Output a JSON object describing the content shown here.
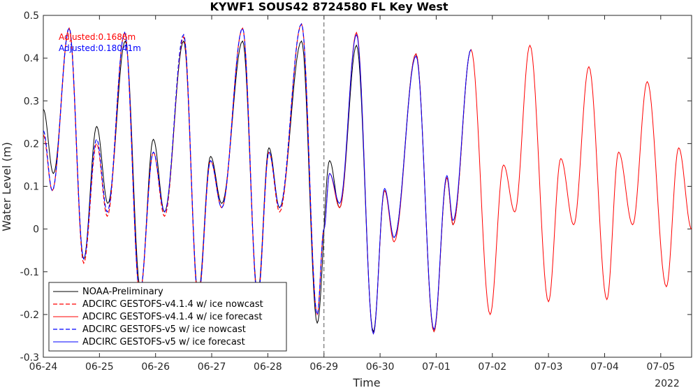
{
  "chart_data": {
    "type": "line",
    "title": "KYWF1 SOUS42 8724580 FL Key West",
    "xlabel": "Time",
    "ylabel": "Water Level (m)",
    "xlim_days": [
      0,
      11.55
    ],
    "ylim": [
      -0.3,
      0.5
    ],
    "x_ticks": [
      "06-24",
      "06-25",
      "06-26",
      "06-27",
      "06-28",
      "06-29",
      "06-30",
      "07-01",
      "07-02",
      "07-03",
      "07-04",
      "07-05"
    ],
    "y_ticks": [
      "-0.3",
      "-0.2",
      "-0.1",
      "0",
      "0.1",
      "0.2",
      "0.3",
      "0.4",
      "0.5"
    ],
    "year_label": "2022",
    "nowcast_forecast_boundary": "06-29",
    "annotations": [
      {
        "text": "Adjusted:0.1686m",
        "color": "#ff0000"
      },
      {
        "text": "Adjusted:0.18041m",
        "color": "#0000ff"
      }
    ],
    "legend_position": "bottom-left",
    "series": [
      {
        "name": "NOAA-Preliminary",
        "color": "#000000",
        "style": "solid",
        "width": 1,
        "peaks": [
          [
            0.0,
            0.28
          ],
          [
            0.18,
            0.13
          ],
          [
            0.46,
            0.47
          ],
          [
            0.72,
            -0.07
          ],
          [
            0.95,
            0.24
          ],
          [
            1.15,
            0.06
          ],
          [
            1.46,
            0.44
          ],
          [
            1.73,
            -0.14
          ],
          [
            1.96,
            0.21
          ],
          [
            2.16,
            0.04
          ],
          [
            2.5,
            0.44
          ],
          [
            2.76,
            -0.15
          ],
          [
            2.98,
            0.17
          ],
          [
            3.18,
            0.06
          ],
          [
            3.55,
            0.44
          ],
          [
            3.82,
            -0.15
          ],
          [
            4.02,
            0.19
          ],
          [
            4.21,
            0.05
          ],
          [
            4.6,
            0.44
          ],
          [
            4.88,
            -0.22
          ],
          [
            5.1,
            0.16
          ],
          [
            5.28,
            0.05
          ],
          [
            5.58,
            0.43
          ],
          [
            5.88,
            -0.24
          ],
          [
            6.08,
            0.09
          ],
          [
            6.25,
            -0.02
          ],
          [
            6.64,
            0.41
          ],
          [
            6.96,
            -0.24
          ],
          [
            7.19,
            0.12
          ],
          [
            7.3,
            0.01
          ],
          [
            7.62,
            0.42
          ]
        ]
      },
      {
        "name": "ADCIRC GESTOFS-v4.1.4 w/ ice nowcast",
        "color": "#ff0000",
        "style": "dashed",
        "width": 1.2,
        "peaks": [
          [
            0.0,
            0.22
          ],
          [
            0.16,
            0.09
          ],
          [
            0.46,
            0.47
          ],
          [
            0.72,
            -0.08
          ],
          [
            0.95,
            0.2
          ],
          [
            1.14,
            0.03
          ],
          [
            1.45,
            0.46
          ],
          [
            1.72,
            -0.15
          ],
          [
            1.96,
            0.18
          ],
          [
            2.16,
            0.03
          ],
          [
            2.5,
            0.45
          ],
          [
            2.76,
            -0.16
          ],
          [
            2.98,
            0.16
          ],
          [
            3.18,
            0.05
          ],
          [
            3.55,
            0.47
          ],
          [
            3.82,
            -0.16
          ],
          [
            4.02,
            0.18
          ],
          [
            4.21,
            0.04
          ],
          [
            4.6,
            0.48
          ],
          [
            4.88,
            -0.2
          ],
          [
            5.0,
            0.0
          ]
        ]
      },
      {
        "name": "ADCIRC GESTOFS-v4.1.4 w/ ice forecast",
        "color": "#ff0000",
        "style": "solid",
        "width": 1,
        "peaks": [
          [
            5.0,
            0.0
          ],
          [
            5.1,
            0.13
          ],
          [
            5.28,
            0.05
          ],
          [
            5.58,
            0.46
          ],
          [
            5.88,
            -0.245
          ],
          [
            6.08,
            0.09
          ],
          [
            6.25,
            -0.03
          ],
          [
            6.64,
            0.41
          ],
          [
            6.96,
            -0.24
          ],
          [
            7.19,
            0.12
          ],
          [
            7.3,
            0.01
          ],
          [
            7.62,
            0.42
          ],
          [
            7.96,
            -0.2
          ],
          [
            8.2,
            0.15
          ],
          [
            8.4,
            0.04
          ],
          [
            8.67,
            0.43
          ],
          [
            9.0,
            -0.17
          ],
          [
            9.22,
            0.165
          ],
          [
            9.45,
            0.01
          ],
          [
            9.72,
            0.38
          ],
          [
            10.04,
            -0.165
          ],
          [
            10.25,
            0.18
          ],
          [
            10.5,
            0.01
          ],
          [
            10.76,
            0.345
          ],
          [
            11.1,
            -0.135
          ],
          [
            11.32,
            0.19
          ],
          [
            11.55,
            0.0
          ]
        ]
      },
      {
        "name": "ADCIRC GESTOFS-v5 w/ ice nowcast",
        "color": "#0000ff",
        "style": "dashed",
        "width": 1.2,
        "peaks": [
          [
            0.0,
            0.23
          ],
          [
            0.16,
            0.09
          ],
          [
            0.46,
            0.47
          ],
          [
            0.72,
            -0.07
          ],
          [
            0.95,
            0.21
          ],
          [
            1.14,
            0.04
          ],
          [
            1.45,
            0.46
          ],
          [
            1.72,
            -0.15
          ],
          [
            1.96,
            0.18
          ],
          [
            2.16,
            0.04
          ],
          [
            2.5,
            0.455
          ],
          [
            2.76,
            -0.16
          ],
          [
            2.98,
            0.16
          ],
          [
            3.18,
            0.05
          ],
          [
            3.55,
            0.47
          ],
          [
            3.82,
            -0.16
          ],
          [
            4.02,
            0.18
          ],
          [
            4.21,
            0.05
          ],
          [
            4.6,
            0.48
          ],
          [
            4.88,
            -0.2
          ],
          [
            5.0,
            0.0
          ]
        ]
      },
      {
        "name": "ADCIRC GESTOFS-v5 w/ ice forecast",
        "color": "#0000ff",
        "style": "solid",
        "width": 1,
        "peaks": [
          [
            5.0,
            0.0
          ],
          [
            5.1,
            0.13
          ],
          [
            5.28,
            0.06
          ],
          [
            5.58,
            0.455
          ],
          [
            5.88,
            -0.245
          ],
          [
            6.08,
            0.095
          ],
          [
            6.25,
            -0.02
          ],
          [
            6.64,
            0.405
          ],
          [
            6.96,
            -0.235
          ],
          [
            7.19,
            0.125
          ],
          [
            7.3,
            0.02
          ],
          [
            7.62,
            0.42
          ]
        ]
      }
    ]
  }
}
